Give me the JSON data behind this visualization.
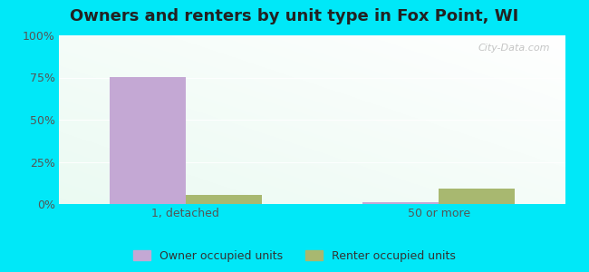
{
  "title": "Owners and renters by unit type in Fox Point, WI",
  "categories": [
    "1, detached",
    "50 or more"
  ],
  "owner_values": [
    75.5,
    1.0
  ],
  "renter_values": [
    5.5,
    9.0
  ],
  "owner_color": "#c4a8d4",
  "renter_color": "#a8b870",
  "ylim": [
    0,
    100
  ],
  "yticks": [
    0,
    25,
    50,
    75,
    100
  ],
  "yticklabels": [
    "0%",
    "25%",
    "50%",
    "75%",
    "100%"
  ],
  "legend_labels": [
    "Owner occupied units",
    "Renter occupied units"
  ],
  "bar_width": 0.3,
  "outer_bg": "#00e8f8",
  "watermark": "City-Data.com",
  "title_fontsize": 13,
  "axis_fontsize": 9
}
